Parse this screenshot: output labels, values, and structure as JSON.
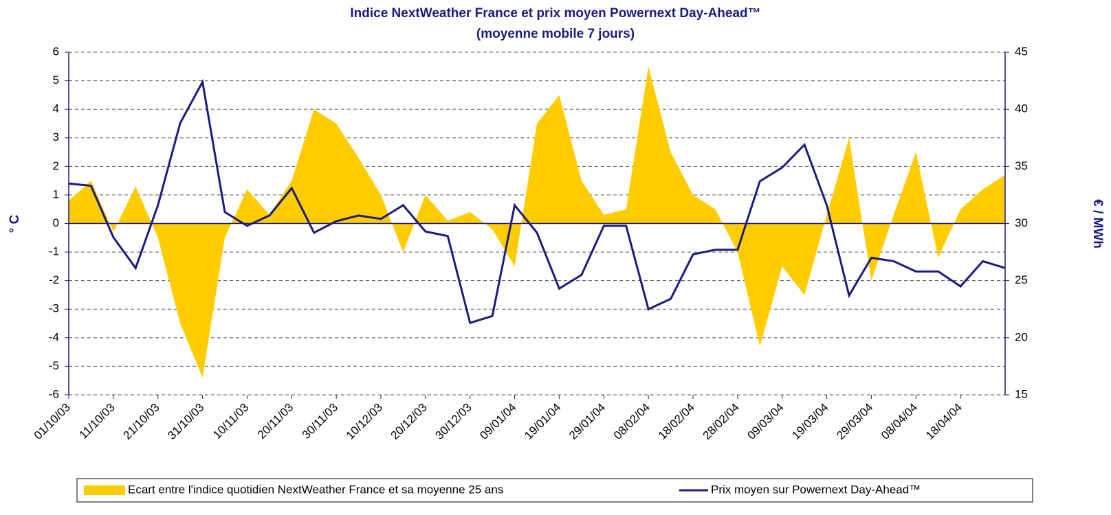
{
  "chart_data": {
    "type": "area-line",
    "title": "Indice NextWeather France et prix moyen Powernext Day-Ahead™",
    "subtitle": "(moyenne mobile 7 jours)",
    "y_label": "° C",
    "y2_label": "€ / MWh",
    "categories": [
      "01/10/03",
      null,
      "11/10/03",
      null,
      "21/10/03",
      null,
      "31/10/03",
      null,
      "10/11/03",
      null,
      "20/11/03",
      null,
      "30/11/03",
      null,
      "10/12/03",
      null,
      "20/12/03",
      null,
      "30/12/03",
      null,
      "09/01/04",
      null,
      "19/01/04",
      null,
      "29/01/04",
      null,
      "08/02/04",
      null,
      "18/02/04",
      null,
      "28/02/04",
      null,
      "09/03/04",
      null,
      "19/03/04",
      null,
      "29/03/04",
      null,
      "08/04/04",
      null,
      "18/04/04",
      null,
      null
    ],
    "series": [
      {
        "name": "Ecart entre l'indice quotidien NextWeather France et sa moyenne 25 ans",
        "color": "#ffcc00",
        "axis": "y",
        "values": [
          0.8,
          1.5,
          -0.3,
          1.3,
          -0.5,
          -3.5,
          -5.4,
          -0.5,
          1.2,
          0.3,
          1.5,
          4.0,
          3.5,
          2.3,
          1.0,
          -1.0,
          1.0,
          0.1,
          0.4,
          -0.2,
          -1.5,
          3.5,
          4.5,
          1.5,
          0.3,
          0.5,
          5.5,
          2.5,
          1.0,
          0.5,
          -1.0,
          -4.3,
          -1.5,
          -2.5,
          0.3,
          3.0,
          -2.0,
          0.3,
          2.5,
          -1.2,
          0.5,
          1.2,
          1.7
        ]
      },
      {
        "name": "Prix moyen sur Powernext Day-Ahead™",
        "color": "#1a1a80",
        "axis": "y2",
        "values": [
          33.5,
          33.3,
          28.8,
          26.1,
          31.6,
          38.8,
          42.4,
          31.0,
          29.8,
          30.7,
          33.1,
          29.2,
          30.2,
          30.7,
          30.4,
          31.6,
          29.3,
          28.9,
          21.3,
          21.9,
          31.6,
          29.2,
          24.3,
          25.5,
          29.8,
          29.8,
          22.5,
          23.4,
          27.3,
          27.7,
          27.7,
          33.7,
          34.9,
          36.9,
          31.6,
          23.7,
          27.0,
          26.7,
          25.8,
          25.8,
          24.5,
          26.7,
          26.1
        ]
      }
    ],
    "ylim": [
      -6,
      6
    ],
    "yticks": [
      -6,
      -5,
      -4,
      -3,
      -2,
      -1,
      0,
      1,
      2,
      3,
      4,
      5,
      6
    ],
    "y2lim": [
      15,
      45
    ],
    "y2ticks": [
      15,
      20,
      25,
      30,
      35,
      40,
      45
    ],
    "grid": true,
    "legend": "bottom"
  }
}
